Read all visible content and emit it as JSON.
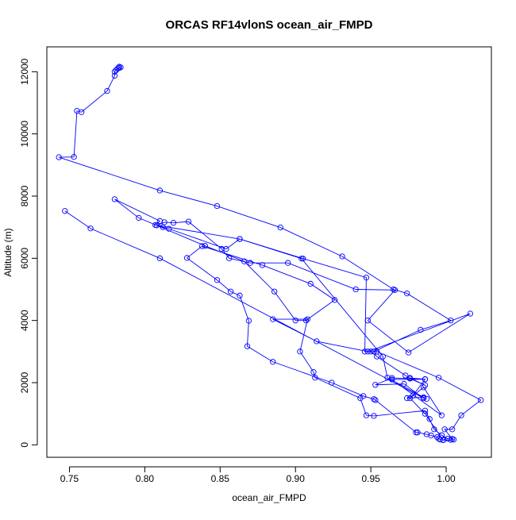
{
  "chart_data": {
    "type": "line",
    "title": "ORCAS RF14vlonS ocean_air_FMPD",
    "xlabel": "ocean_air_FMPD",
    "ylabel": "Altitude (m)",
    "xlim": [
      0.735,
      1.03
    ],
    "ylim": [
      -400,
      12800
    ],
    "x_ticks": [
      0.75,
      0.8,
      0.85,
      0.9,
      0.95,
      1.0
    ],
    "x_tick_labels": [
      "0.75",
      "0.80",
      "0.85",
      "0.90",
      "0.95",
      "1.00"
    ],
    "y_ticks": [
      0,
      2000,
      4000,
      6000,
      8000,
      10000,
      12000
    ],
    "y_tick_labels": [
      "0",
      "2000",
      "4000",
      "6000",
      "8000",
      "10000",
      "12000"
    ],
    "grid": false,
    "legend": "none",
    "series": [
      {
        "color": "#0000ff",
        "marker": "open-circle",
        "points": [
          [
            0.783,
            12160
          ],
          [
            0.784,
            12140
          ],
          [
            0.783,
            12120
          ],
          [
            0.782,
            12100
          ],
          [
            0.781,
            12050
          ],
          [
            0.78,
            12000
          ],
          [
            0.78,
            11870
          ],
          [
            0.775,
            11380
          ],
          [
            0.758,
            10700
          ],
          [
            0.755,
            10740
          ],
          [
            0.753,
            9260
          ],
          [
            0.743,
            9250
          ],
          [
            0.81,
            8180
          ],
          [
            0.848,
            7680
          ],
          [
            0.89,
            6990
          ],
          [
            0.931,
            6060
          ],
          [
            0.965,
            5000
          ],
          [
            0.974,
            4870
          ],
          [
            1.003,
            4000
          ],
          [
            0.983,
            3700
          ],
          [
            0.952,
            3000
          ],
          [
            0.946,
            3000
          ],
          [
            0.947,
            5380
          ],
          [
            0.905,
            5990
          ],
          [
            0.863,
            6620
          ],
          [
            0.854,
            6300
          ],
          [
            0.816,
            6950
          ],
          [
            0.812,
            7000
          ],
          [
            0.808,
            7060
          ],
          [
            0.813,
            7160
          ],
          [
            0.819,
            7140
          ],
          [
            0.829,
            7180
          ],
          [
            0.851,
            6300
          ],
          [
            0.856,
            6000
          ],
          [
            0.87,
            5850
          ],
          [
            0.895,
            5850
          ],
          [
            0.94,
            5000
          ],
          [
            0.966,
            4980
          ],
          [
            0.948,
            4000
          ],
          [
            0.975,
            2970
          ],
          [
            1.016,
            4220
          ],
          [
            0.948,
            3000
          ],
          [
            0.914,
            3330
          ],
          [
            0.885,
            4040
          ],
          [
            0.908,
            4040
          ],
          [
            0.903,
            3000
          ],
          [
            0.912,
            2340
          ],
          [
            0.913,
            2160
          ],
          [
            0.943,
            1500
          ],
          [
            0.947,
            950
          ],
          [
            0.952,
            930
          ],
          [
            0.986,
            1100
          ],
          [
            0.989,
            830
          ],
          [
            0.992,
            500
          ],
          [
            0.997,
            310
          ],
          [
            1.001,
            200
          ],
          [
            0.998,
            160
          ],
          [
            0.996,
            170
          ],
          [
            0.995,
            200
          ],
          [
            0.994,
            250
          ],
          [
            0.99,
            300
          ],
          [
            0.987,
            340
          ],
          [
            0.981,
            400
          ],
          [
            0.98,
            400
          ],
          [
            0.953,
            1440
          ],
          [
            0.952,
            1470
          ],
          [
            0.945,
            1570
          ],
          [
            0.924,
            2000
          ],
          [
            0.885,
            2670
          ],
          [
            0.868,
            3170
          ],
          [
            0.869,
            3990
          ],
          [
            0.863,
            4800
          ],
          [
            0.857,
            4930
          ],
          [
            0.848,
            5300
          ],
          [
            0.828,
            6010
          ],
          [
            0.838,
            6390
          ],
          [
            0.878,
            5780
          ],
          [
            0.91,
            5180
          ],
          [
            0.926,
            4660
          ],
          [
            0.907,
            4000
          ],
          [
            0.9,
            4000
          ],
          [
            0.886,
            4930
          ],
          [
            0.866,
            5900
          ],
          [
            0.84,
            6400
          ],
          [
            0.796,
            7300
          ],
          [
            0.78,
            7900
          ],
          [
            0.81,
            7200
          ],
          [
            0.807,
            7070
          ],
          [
            0.863,
            6620
          ],
          [
            0.904,
            5990
          ],
          [
            0.958,
            2840
          ],
          [
            0.961,
            2160
          ],
          [
            0.987,
            1480
          ],
          [
            0.985,
            1530
          ],
          [
            0.974,
            1500
          ],
          [
            0.978,
            1590
          ],
          [
            0.986,
            2110
          ],
          [
            0.976,
            2140
          ],
          [
            0.973,
            2230
          ],
          [
            0.954,
            2840
          ],
          [
            0.95,
            3000
          ],
          [
            0.954,
            3000
          ],
          [
            0.995,
            2160
          ],
          [
            1.023,
            1440
          ],
          [
            1.01,
            950
          ],
          [
            1.004,
            500
          ],
          [
            0.999,
            500
          ],
          [
            1.004,
            190
          ],
          [
            1.005,
            170
          ],
          [
            1.003,
            160
          ],
          [
            0.998,
            150
          ],
          [
            0.986,
            1000
          ],
          [
            0.976,
            1500
          ],
          [
            0.985,
            1850
          ],
          [
            0.997,
            950
          ],
          [
            0.964,
            2100
          ],
          [
            0.986,
            2110
          ],
          [
            0.976,
            2150
          ],
          [
            0.986,
            1920
          ],
          [
            0.976,
            2130
          ],
          [
            0.964,
            2150
          ],
          [
            0.953,
            1930
          ],
          [
            0.972,
            1960
          ],
          [
            0.985,
            1500
          ],
          [
            0.81,
            6000
          ],
          [
            0.764,
            6960
          ],
          [
            0.747,
            7520
          ]
        ]
      }
    ]
  }
}
